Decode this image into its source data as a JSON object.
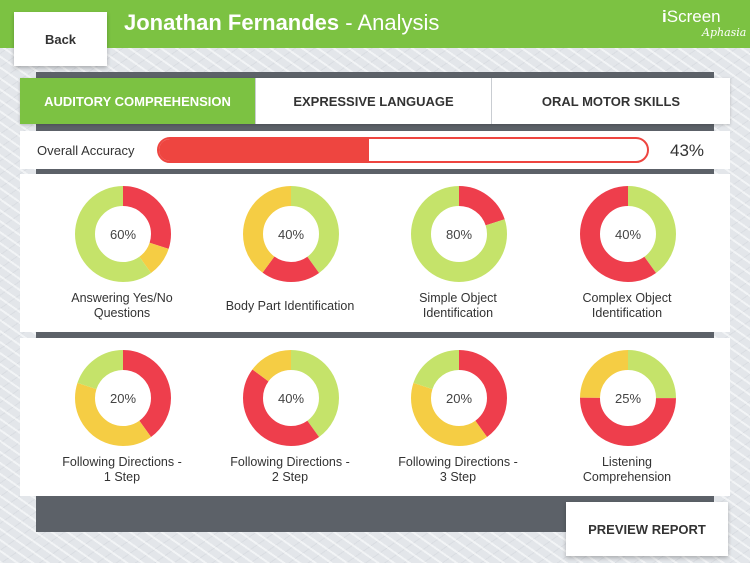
{
  "header": {
    "back_label": "Back",
    "patient_name": "Jonathan Fernandes",
    "title_suffix": " - Analysis",
    "logo_main_i": "i",
    "logo_main_rest": "Screen",
    "logo_sub": "Aphasia",
    "accent_color": "#7cc242"
  },
  "tabs": [
    {
      "label": "AUDITORY COMPREHENSION",
      "active": true
    },
    {
      "label": "EXPRESSIVE LANGUAGE",
      "active": false
    },
    {
      "label": "ORAL MOTOR SKILLS",
      "active": false
    }
  ],
  "overall": {
    "label": "Overall Accuracy",
    "value_text": "43%",
    "fill_fraction": 0.43
  },
  "colors": {
    "correct": "#c5e36a",
    "incorrect": "#ee3e4c",
    "partial": "#f5cd44"
  },
  "cards": [
    {
      "label_line1": "Answering Yes/No",
      "label_line2": "Questions",
      "pct_text": "60%",
      "segments": [
        {
          "color": "incorrect",
          "fraction": 0.3
        },
        {
          "color": "partial",
          "fraction": 0.1
        },
        {
          "color": "correct",
          "fraction": 0.6
        }
      ]
    },
    {
      "label_line1": "Body Part Identification",
      "label_line2": "",
      "pct_text": "40%",
      "segments": [
        {
          "color": "correct",
          "fraction": 0.4
        },
        {
          "color": "incorrect",
          "fraction": 0.2
        },
        {
          "color": "partial",
          "fraction": 0.4
        }
      ]
    },
    {
      "label_line1": "Simple Object",
      "label_line2": "Identification",
      "pct_text": "80%",
      "segments": [
        {
          "color": "incorrect",
          "fraction": 0.2
        },
        {
          "color": "correct",
          "fraction": 0.8
        }
      ]
    },
    {
      "label_line1": "Complex Object",
      "label_line2": "Identification",
      "pct_text": "40%",
      "segments": [
        {
          "color": "correct",
          "fraction": 0.4
        },
        {
          "color": "incorrect",
          "fraction": 0.6
        }
      ]
    },
    {
      "label_line1": "Following Directions -",
      "label_line2": "1 Step",
      "pct_text": "20%",
      "segments": [
        {
          "color": "incorrect",
          "fraction": 0.4
        },
        {
          "color": "partial",
          "fraction": 0.4
        },
        {
          "color": "correct",
          "fraction": 0.2
        }
      ]
    },
    {
      "label_line1": "Following Directions -",
      "label_line2": "2 Step",
      "pct_text": "40%",
      "segments": [
        {
          "color": "correct",
          "fraction": 0.4
        },
        {
          "color": "incorrect",
          "fraction": 0.45
        },
        {
          "color": "partial",
          "fraction": 0.15
        }
      ]
    },
    {
      "label_line1": "Following Directions -",
      "label_line2": "3 Step",
      "pct_text": "20%",
      "segments": [
        {
          "color": "incorrect",
          "fraction": 0.4
        },
        {
          "color": "partial",
          "fraction": 0.4
        },
        {
          "color": "correct",
          "fraction": 0.2
        }
      ]
    },
    {
      "label_line1": "Listening",
      "label_line2": "Comprehension",
      "pct_text": "25%",
      "segments": [
        {
          "color": "correct",
          "fraction": 0.25
        },
        {
          "color": "incorrect",
          "fraction": 0.5
        },
        {
          "color": "partial",
          "fraction": 0.25
        }
      ]
    }
  ],
  "preview_label": "PREVIEW REPORT"
}
